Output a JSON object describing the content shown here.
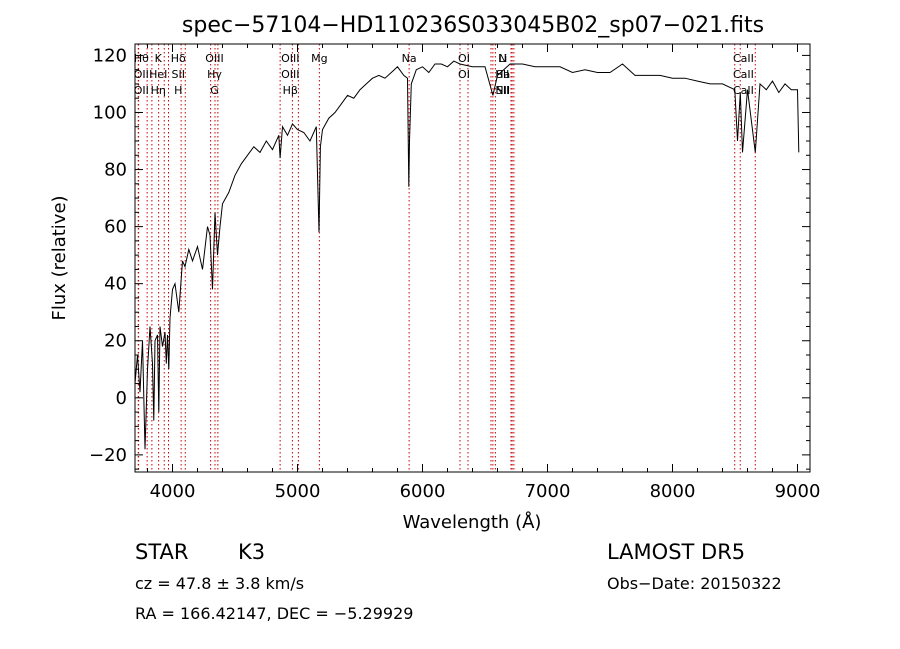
{
  "chart_data": {
    "type": "line",
    "title": "spec−57104−HD110236S033045B02_sp07−021.fits",
    "xlabel": "Wavelength (Å)",
    "ylabel": "Flux (relative)",
    "xlim": [
      3700,
      9100
    ],
    "ylim": [
      -26,
      124
    ],
    "xticks": [
      4000,
      5000,
      6000,
      7000,
      8000,
      9000
    ],
    "yticks": [
      -20,
      0,
      20,
      40,
      60,
      80,
      100,
      120
    ],
    "series": [
      {
        "x": [
          3700,
          3720,
          3740,
          3760,
          3780,
          3800,
          3820,
          3840,
          3850,
          3860,
          3880,
          3890,
          3900,
          3920,
          3940,
          3950,
          3960,
          3970,
          3980,
          4000,
          4020,
          4050,
          4080,
          4100,
          4130,
          4160,
          4200,
          4240,
          4280,
          4300,
          4320,
          4340,
          4360,
          4380,
          4400,
          4450,
          4500,
          4550,
          4600,
          4650,
          4700,
          4750,
          4800,
          4850,
          4861,
          4880,
          4920,
          4960,
          5000,
          5050,
          5100,
          5150,
          5172,
          5183,
          5200,
          5250,
          5300,
          5350,
          5400,
          5450,
          5500,
          5550,
          5600,
          5650,
          5700,
          5750,
          5800,
          5850,
          5880,
          5890,
          5896,
          5910,
          5950,
          6000,
          6050,
          6100,
          6150,
          6200,
          6250,
          6300,
          6400,
          6500,
          6563,
          6600,
          6700,
          6800,
          6900,
          7000,
          7100,
          7200,
          7300,
          7400,
          7500,
          7600,
          7700,
          7800,
          7900,
          8000,
          8100,
          8200,
          8300,
          8400,
          8498,
          8520,
          8542,
          8560,
          8600,
          8662,
          8700,
          8750,
          8800,
          8850,
          8900,
          8950,
          9000,
          9010
        ],
        "y": [
          5,
          15,
          2,
          20,
          -18,
          10,
          25,
          12,
          -8,
          20,
          22,
          -5,
          25,
          18,
          23,
          12,
          22,
          10,
          28,
          38,
          40,
          30,
          48,
          46,
          52,
          48,
          53,
          45,
          60,
          57,
          38,
          65,
          50,
          60,
          68,
          72,
          78,
          82,
          85,
          88,
          86,
          90,
          87,
          92,
          84,
          95,
          92,
          96,
          94,
          93,
          90,
          95,
          58,
          88,
          94,
          98,
          100,
          103,
          106,
          105,
          108,
          110,
          112,
          113,
          112,
          114,
          116,
          113,
          112,
          74,
          90,
          110,
          115,
          116,
          114,
          117,
          117,
          116,
          118,
          117,
          116,
          116,
          106,
          113,
          117,
          117,
          116,
          116,
          116,
          114,
          115,
          114,
          114,
          117,
          113,
          113,
          113,
          112,
          112,
          111,
          110,
          110,
          108,
          90,
          107,
          86,
          108,
          86,
          110,
          108,
          111,
          107,
          110,
          108,
          108,
          86
        ]
      }
    ],
    "line_groups": [
      {
        "names": [
          "Hθ",
          "OII",
          "OII"
        ],
        "x": [
          3797,
          3726,
          3729
        ]
      },
      {
        "names": [
          "K",
          "HeI",
          "Hη"
        ],
        "x": [
          3934,
          3889,
          3835
        ]
      },
      {
        "names": [
          "Hδ",
          "SII",
          "H"
        ],
        "x": [
          4102,
          4069,
          3968
        ]
      },
      {
        "names": [
          "OIII",
          "Hγ",
          "G"
        ],
        "x": [
          4363,
          4340,
          4305
        ]
      },
      {
        "names": [
          "OIII",
          "OIII",
          "Hβ"
        ],
        "x": [
          5007,
          4959,
          4861
        ]
      },
      {
        "names": [
          "Mg"
        ],
        "x": [
          5175
        ]
      },
      {
        "names": [
          "Na"
        ],
        "x": [
          5893
        ]
      },
      {
        "names": [
          "OI",
          "OI"
        ],
        "x": [
          6300,
          6364
        ]
      },
      {
        "names": [
          "N",
          "Ha",
          "NII",
          "Li",
          "SII",
          "SII"
        ],
        "x": [
          6548,
          6563,
          6583,
          6708,
          6717,
          6731
        ]
      },
      {
        "names": [
          "CaII",
          "CaII",
          "CaII"
        ],
        "x": [
          8498,
          8542,
          8662
        ]
      }
    ]
  },
  "info": {
    "class": "STAR",
    "subclass": "K3",
    "survey": "LAMOST  DR5",
    "cz": "cz = 47.8 ± 3.8 km/s",
    "obs_date": "Obs−Date: 20150322",
    "coords": "RA = 166.42147, DEC =  −5.29929"
  },
  "colors": {
    "spectrum": "#000000",
    "line_markers": "#cc0000",
    "axes": "#000000"
  }
}
